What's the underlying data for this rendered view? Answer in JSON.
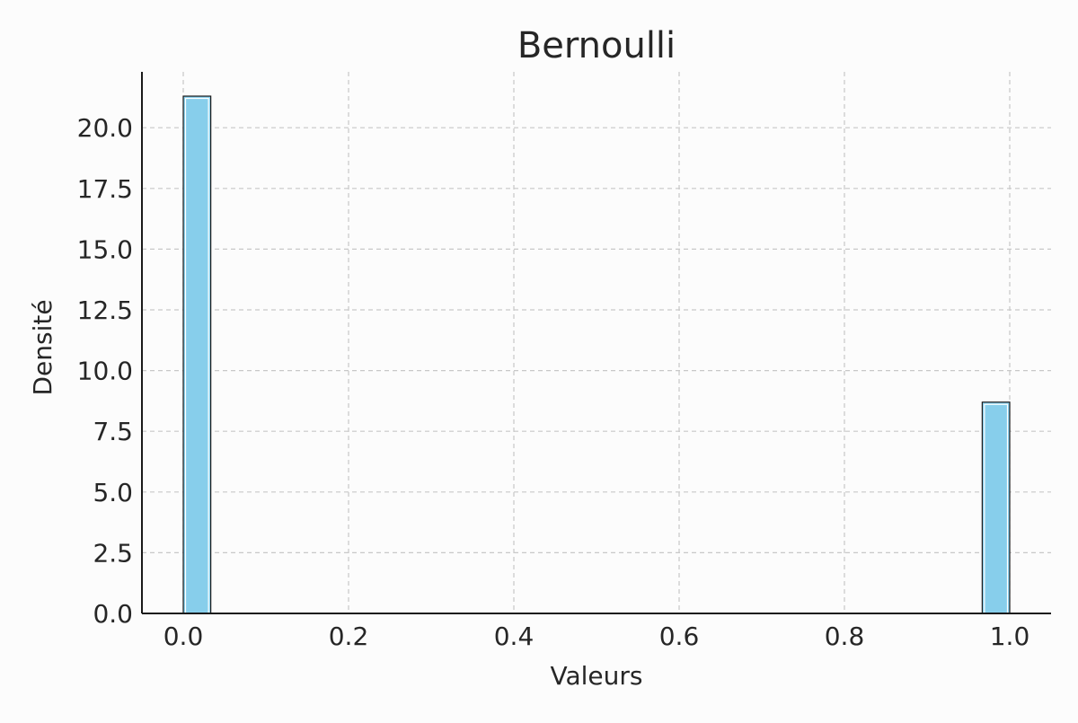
{
  "chart_data": {
    "type": "bar",
    "title": "Bernoulli",
    "xlabel": "Valeurs",
    "ylabel": "Densité",
    "xlim": [
      -0.05,
      1.05
    ],
    "ylim": [
      0,
      22.3
    ],
    "xticks": [
      0.0,
      0.2,
      0.4,
      0.6,
      0.8,
      1.0
    ],
    "xtick_labels": [
      "0.0",
      "0.2",
      "0.4",
      "0.6",
      "0.8",
      "1.0"
    ],
    "yticks": [
      0.0,
      2.5,
      5.0,
      7.5,
      10.0,
      12.5,
      15.0,
      17.5,
      20.0
    ],
    "ytick_labels": [
      "0.0",
      "2.5",
      "5.0",
      "7.5",
      "10.0",
      "12.5",
      "15.0",
      "17.5",
      "20.0"
    ],
    "grid": true,
    "bars": [
      {
        "x0": 0.0,
        "x1": 0.0333,
        "value": 21.3
      },
      {
        "x0": 0.9667,
        "x1": 1.0,
        "value": 8.7
      }
    ],
    "colors": {
      "bar": "#87ceeb",
      "edge": "#1a1a1a",
      "grid": "#c8c8c8",
      "axis": "#1a1a1a"
    }
  }
}
